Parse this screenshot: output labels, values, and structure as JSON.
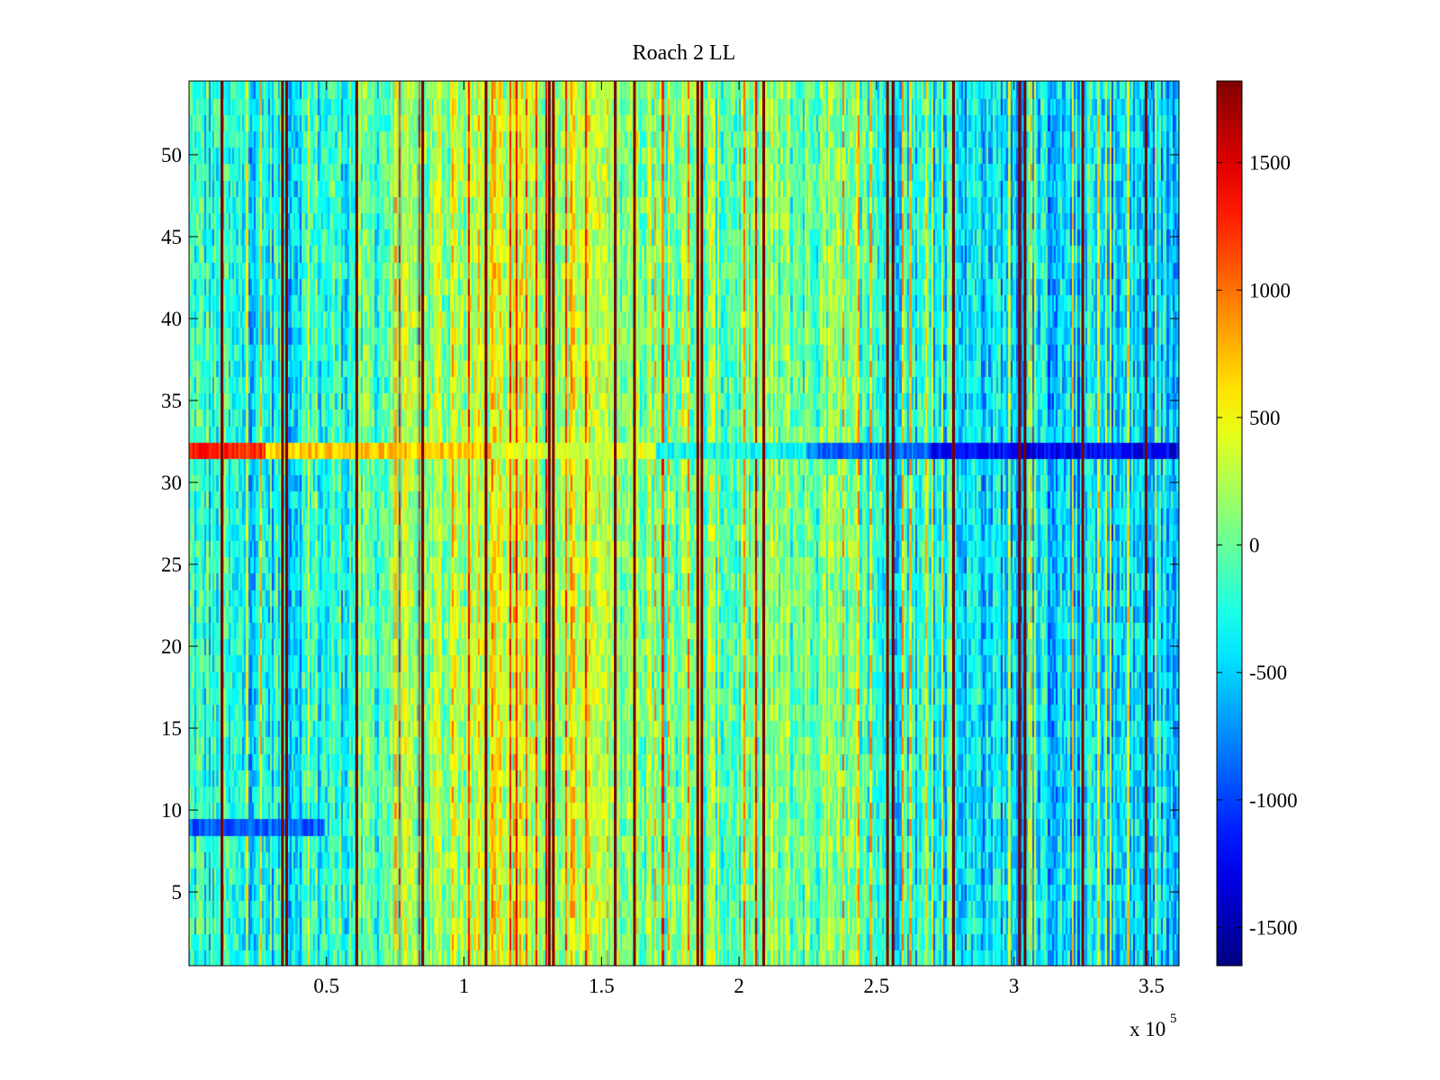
{
  "chart_data": {
    "type": "heatmap",
    "title": "Roach 2 LL",
    "xlabel": "",
    "ylabel": "",
    "x_exponent_base": "x 10",
    "x_exponent_power": "5",
    "xlim": [
      0,
      360000
    ],
    "ylim": [
      0.5,
      54.5
    ],
    "rows": 54,
    "x_ticks": [
      {
        "value": 50000,
        "label": "0.5"
      },
      {
        "value": 100000,
        "label": "1"
      },
      {
        "value": 150000,
        "label": "1.5"
      },
      {
        "value": 200000,
        "label": "2"
      },
      {
        "value": 250000,
        "label": "2.5"
      },
      {
        "value": 300000,
        "label": "3"
      },
      {
        "value": 350000,
        "label": "3.5"
      }
    ],
    "y_ticks": [
      {
        "value": 5,
        "label": "5"
      },
      {
        "value": 10,
        "label": "10"
      },
      {
        "value": 15,
        "label": "15"
      },
      {
        "value": 20,
        "label": "20"
      },
      {
        "value": 25,
        "label": "25"
      },
      {
        "value": 30,
        "label": "30"
      },
      {
        "value": 35,
        "label": "35"
      },
      {
        "value": 40,
        "label": "40"
      },
      {
        "value": 45,
        "label": "45"
      },
      {
        "value": 50,
        "label": "50"
      }
    ],
    "colorbar": {
      "range": [
        -1650,
        1820
      ],
      "colormap": "jet",
      "ticks": [
        {
          "value": -1500,
          "label": "-1500"
        },
        {
          "value": -1000,
          "label": "-1000"
        },
        {
          "value": -500,
          "label": "-500"
        },
        {
          "value": 0,
          "label": "0"
        },
        {
          "value": 500,
          "label": "500"
        },
        {
          "value": 1000,
          "label": "1000"
        },
        {
          "value": 1500,
          "label": "1500"
        }
      ]
    },
    "column_trend": [
      {
        "x": 0,
        "value": -200
      },
      {
        "x": 20000,
        "value": -350
      },
      {
        "x": 40000,
        "value": -300
      },
      {
        "x": 60000,
        "value": -150
      },
      {
        "x": 80000,
        "value": 50
      },
      {
        "x": 100000,
        "value": 250
      },
      {
        "x": 120000,
        "value": 350
      },
      {
        "x": 140000,
        "value": 330
      },
      {
        "x": 160000,
        "value": 200
      },
      {
        "x": 180000,
        "value": 80
      },
      {
        "x": 200000,
        "value": -30
      },
      {
        "x": 220000,
        "value": 50
      },
      {
        "x": 240000,
        "value": -100
      },
      {
        "x": 260000,
        "value": -250
      },
      {
        "x": 280000,
        "value": -400
      },
      {
        "x": 300000,
        "value": -450
      },
      {
        "x": 320000,
        "value": -480
      },
      {
        "x": 340000,
        "value": -500
      },
      {
        "x": 360000,
        "value": -450
      }
    ],
    "dark_red_lines_x": [
      12000,
      34000,
      35500,
      61000,
      85000,
      108000,
      131000,
      132500,
      155000,
      162000,
      185000,
      186500,
      209000,
      254000,
      256000,
      278000,
      302000,
      304000,
      325000,
      348000
    ],
    "highlighted_row": {
      "row": 32,
      "segments": [
        {
          "x0": 0,
          "x1": 28000,
          "value": 1250
        },
        {
          "x0": 28000,
          "x1": 110000,
          "value": 700
        },
        {
          "x0": 110000,
          "x1": 170000,
          "value": 400
        },
        {
          "x0": 170000,
          "x1": 225000,
          "value": -300
        },
        {
          "x0": 225000,
          "x1": 270000,
          "value": -850
        },
        {
          "x0": 270000,
          "x1": 360000,
          "value": -1250
        }
      ]
    },
    "low_row": {
      "row": 9,
      "x0": 0,
      "x1": 50000,
      "value": -900
    }
  }
}
